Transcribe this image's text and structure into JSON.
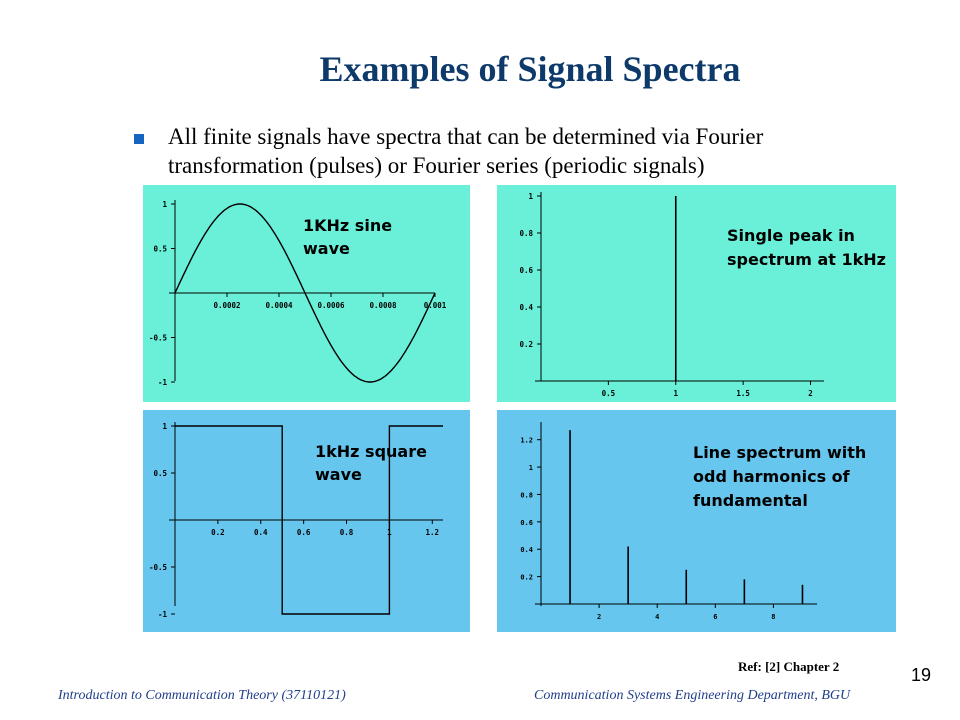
{
  "slide": {
    "title": "Examples of Signal Spectra",
    "bullet": "All finite signals have spectra that can be determined via Fourier transformation (pulses) or Fourier series (periodic signals)",
    "ref": "Ref: [2]  Chapter 2",
    "page_number": "19",
    "footer_left": "Introduction to Communication Theory (37110121)",
    "footer_right": "Communication Systems Engineering Department, BGU"
  },
  "colors": {
    "title": "#0e3a6b",
    "bullet": "#1565c0",
    "panel_teal": "#6af0d8",
    "panel_blue": "#66c6ee",
    "footer": "#1f3e8a"
  },
  "chart_data": [
    {
      "type": "line",
      "annotation": [
        "1KHz sine",
        "wave"
      ],
      "xlim": [
        0,
        0.001
      ],
      "ylim": [
        -1,
        1
      ],
      "xticks": [
        0.0002,
        0.0004,
        0.0006,
        0.0008,
        0.001
      ],
      "xtick_labels": [
        "0.0002",
        "0.0004",
        "0.0006",
        "0.0008",
        "0.001"
      ],
      "yticks": [
        1,
        0.5,
        -0.5,
        -1
      ],
      "ytick_labels": [
        "1",
        "0.5",
        "-0.5",
        "-1"
      ],
      "function": "sin(2*pi*1000*t)",
      "background": "#6af0d8"
    },
    {
      "type": "bar",
      "annotation": [
        "Single peak in",
        "spectrum at 1kHz"
      ],
      "xlim": [
        0,
        2.1
      ],
      "ylim": [
        0,
        1
      ],
      "xticks": [
        0.5,
        1,
        1.5,
        2
      ],
      "xtick_labels": [
        "0.5",
        "1",
        "1.5",
        "2"
      ],
      "yticks": [
        1,
        0.8,
        0.6,
        0.4,
        0.2
      ],
      "ytick_labels": [
        "1",
        "0.8",
        "0.6",
        "0.4",
        "0.2"
      ],
      "x": [
        1
      ],
      "values": [
        1
      ],
      "background": "#6af0d8"
    },
    {
      "type": "line",
      "annotation": [
        "1kHz square",
        "wave"
      ],
      "xlim": [
        0,
        1.25
      ],
      "ylim": [
        -1,
        1
      ],
      "xticks": [
        0.2,
        0.4,
        0.6,
        0.8,
        1,
        1.2
      ],
      "xtick_labels": [
        "0.2",
        "0.4",
        "0.6",
        "0.8",
        "1",
        "1.2"
      ],
      "yticks": [
        1,
        0.5,
        -0.5,
        -1
      ],
      "ytick_labels": [
        "1",
        "0.5",
        "-0.5",
        "-1"
      ],
      "x": [
        0,
        0.5,
        0.5,
        1,
        1,
        1.25
      ],
      "values": [
        1,
        1,
        -1,
        -1,
        1,
        1
      ],
      "background": "#66c6ee"
    },
    {
      "type": "bar",
      "annotation": [
        "Line spectrum with",
        "odd harmonics of",
        "fundamental"
      ],
      "xlim": [
        0,
        9.5
      ],
      "ylim": [
        0,
        1.3
      ],
      "xticks": [
        2,
        4,
        6,
        8
      ],
      "xtick_labels": [
        "2",
        "4",
        "6",
        "8"
      ],
      "yticks": [
        1.2,
        1,
        0.8,
        0.6,
        0.4,
        0.2
      ],
      "ytick_labels": [
        "1.2",
        "1",
        "0.8",
        "0.6",
        "0.4",
        "0.2"
      ],
      "x": [
        1,
        3,
        5,
        7,
        9
      ],
      "values": [
        1.27,
        0.42,
        0.25,
        0.18,
        0.14
      ],
      "background": "#66c6ee"
    }
  ]
}
